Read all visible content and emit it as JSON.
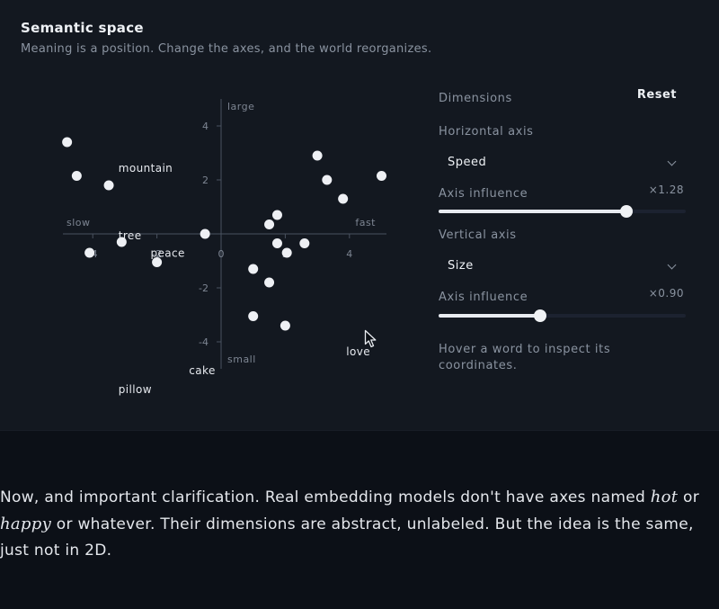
{
  "card": {
    "title": "Semantic space",
    "subtitle": "Meaning is a position. Change the axes, and the world reorganizes."
  },
  "chart_data": {
    "type": "scatter",
    "xlim": [
      -5,
      5
    ],
    "ylim": [
      -5,
      5
    ],
    "x_ticks": [
      -4,
      -2,
      0,
      2,
      4
    ],
    "y_ticks": [
      4,
      2,
      -2,
      -4
    ],
    "tick_labels_x": [
      "-4",
      "-2",
      "0",
      "2",
      "4"
    ],
    "tick_labels_y": [
      "4",
      "2",
      "-2",
      "-4"
    ],
    "axis_labels": {
      "top": "large",
      "bottom": "small",
      "left": "slow",
      "right": "fast"
    },
    "points": [
      {
        "x": -4.8,
        "y": 3.4
      },
      {
        "x": -4.5,
        "y": 2.15
      },
      {
        "x": -3.5,
        "y": 1.8
      },
      {
        "x": -4.1,
        "y": -0.7
      },
      {
        "x": -3.1,
        "y": -0.3
      },
      {
        "x": -2.0,
        "y": -1.05
      },
      {
        "x": -0.5,
        "y": 0.0
      },
      {
        "x": 1.0,
        "y": -1.3
      },
      {
        "x": 1.5,
        "y": -1.8
      },
      {
        "x": 1.0,
        "y": -3.05
      },
      {
        "x": 2.0,
        "y": -3.4
      },
      {
        "x": 1.5,
        "y": 0.35
      },
      {
        "x": 1.75,
        "y": 0.7
      },
      {
        "x": 1.75,
        "y": -0.35
      },
      {
        "x": 2.05,
        "y": -0.7
      },
      {
        "x": 2.6,
        "y": -0.35
      },
      {
        "x": 3.0,
        "y": 2.9
      },
      {
        "x": 3.3,
        "y": 2.0
      },
      {
        "x": 3.8,
        "y": 1.3
      },
      {
        "x": 5.0,
        "y": 2.15
      }
    ],
    "word_labels": [
      {
        "text": "mountain",
        "x": -3.2,
        "y": 2.3
      },
      {
        "text": "tree",
        "x": -3.2,
        "y": -0.2
      },
      {
        "text": "peace",
        "x": -2.2,
        "y": -0.85
      },
      {
        "text": "cake",
        "x": -1.0,
        "y": -5.2
      },
      {
        "text": "pillow",
        "x": -3.2,
        "y": -5.9
      },
      {
        "text": "love",
        "x": 3.9,
        "y": -4.5
      }
    ]
  },
  "panel": {
    "title": "Dimensions",
    "reset": "Reset",
    "horizontal": {
      "label": "Horizontal axis",
      "value": "Speed",
      "influence_label": "Axis influence",
      "influence_text": "×1.28",
      "influence_fraction": 0.76
    },
    "vertical": {
      "label": "Vertical axis",
      "value": "Size",
      "influence_label": "Axis influence",
      "influence_text": "×0.90",
      "influence_fraction": 0.41
    },
    "hint": "Hover a word to inspect its coordinates."
  },
  "prose": {
    "p1": "Now, and important clarification. Real embedding models don't have axes named",
    "w1": "hot",
    "p2": " or ",
    "w2": "happy",
    "p3": " or whatever. Their dimensions are abstract, unlabeled. But the idea is the same, just not in 2D."
  },
  "colors": {
    "background": "#0c1017",
    "card": "#131820",
    "accent": "#e8ebf0"
  }
}
